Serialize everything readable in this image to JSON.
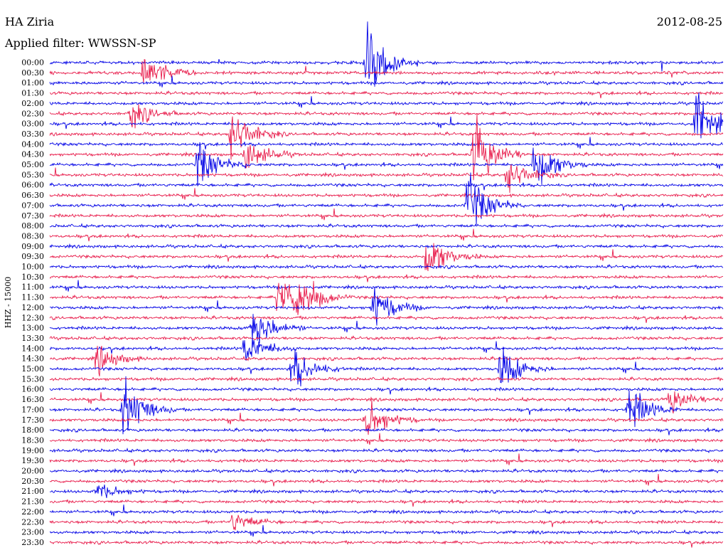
{
  "header": {
    "station": "HA Ziria",
    "date": "2012-08-25",
    "filter": "Applied filter: WWSSN-SP"
  },
  "chart_data": {
    "type": "line",
    "title": "HA Ziria",
    "subtitle": "Applied filter: WWSSN-SP",
    "ylabel": "HHZ - 15000",
    "colors": {
      "line_a": "#0000e6",
      "line_b": "#e81a4a"
    },
    "ticks": [
      "00:00",
      "00:30",
      "01:00",
      "01:30",
      "02:00",
      "02:30",
      "03:00",
      "03:30",
      "04:00",
      "04:30",
      "05:00",
      "05:30",
      "06:00",
      "06:30",
      "07:00",
      "07:30",
      "08:00",
      "08:30",
      "09:00",
      "09:30",
      "10:00",
      "10:30",
      "11:00",
      "11:30",
      "12:00",
      "12:30",
      "13:00",
      "13:30",
      "14:00",
      "14:30",
      "15:00",
      "15:30",
      "16:00",
      "16:30",
      "17:00",
      "17:30",
      "18:00",
      "18:30",
      "19:00",
      "19:30",
      "20:00",
      "20:30",
      "21:00",
      "21:30",
      "22:00",
      "22:30",
      "23:00",
      "23:30"
    ],
    "traces_description": "helicorder: one trace per 30-minute row, alternating blue/red",
    "events": [
      {
        "row": 1,
        "x": 0.14,
        "amp": 2.2
      },
      {
        "row": 0,
        "x": 0.47,
        "amp": 4.5
      },
      {
        "row": 5,
        "x": 0.12,
        "amp": 1.5
      },
      {
        "row": 7,
        "x": 0.27,
        "amp": 3.0
      },
      {
        "row": 9,
        "x": 0.29,
        "amp": 2.0
      },
      {
        "row": 10,
        "x": 0.22,
        "amp": 2.5
      },
      {
        "row": 9,
        "x": 0.63,
        "amp": 4.0
      },
      {
        "row": 10,
        "x": 0.72,
        "amp": 3.0
      },
      {
        "row": 11,
        "x": 0.68,
        "amp": 2.0
      },
      {
        "row": 6,
        "x": 0.96,
        "amp": 3.5
      },
      {
        "row": 14,
        "x": 0.62,
        "amp": 3.5
      },
      {
        "row": 19,
        "x": 0.56,
        "amp": 2.5
      },
      {
        "row": 23,
        "x": 0.34,
        "amp": 3.0
      },
      {
        "row": 23,
        "x": 0.37,
        "amp": 2.5
      },
      {
        "row": 24,
        "x": 0.48,
        "amp": 2.5
      },
      {
        "row": 26,
        "x": 0.3,
        "amp": 3.0
      },
      {
        "row": 28,
        "x": 0.29,
        "amp": 2.0
      },
      {
        "row": 29,
        "x": 0.07,
        "amp": 1.5
      },
      {
        "row": 30,
        "x": 0.36,
        "amp": 2.5
      },
      {
        "row": 30,
        "x": 0.67,
        "amp": 2.5
      },
      {
        "row": 34,
        "x": 0.11,
        "amp": 3.5
      },
      {
        "row": 35,
        "x": 0.47,
        "amp": 2.5
      },
      {
        "row": 34,
        "x": 0.86,
        "amp": 2.5
      },
      {
        "row": 33,
        "x": 0.92,
        "amp": 1.5
      },
      {
        "row": 42,
        "x": 0.07,
        "amp": 1.0
      },
      {
        "row": 45,
        "x": 0.27,
        "amp": 1.2
      }
    ]
  }
}
